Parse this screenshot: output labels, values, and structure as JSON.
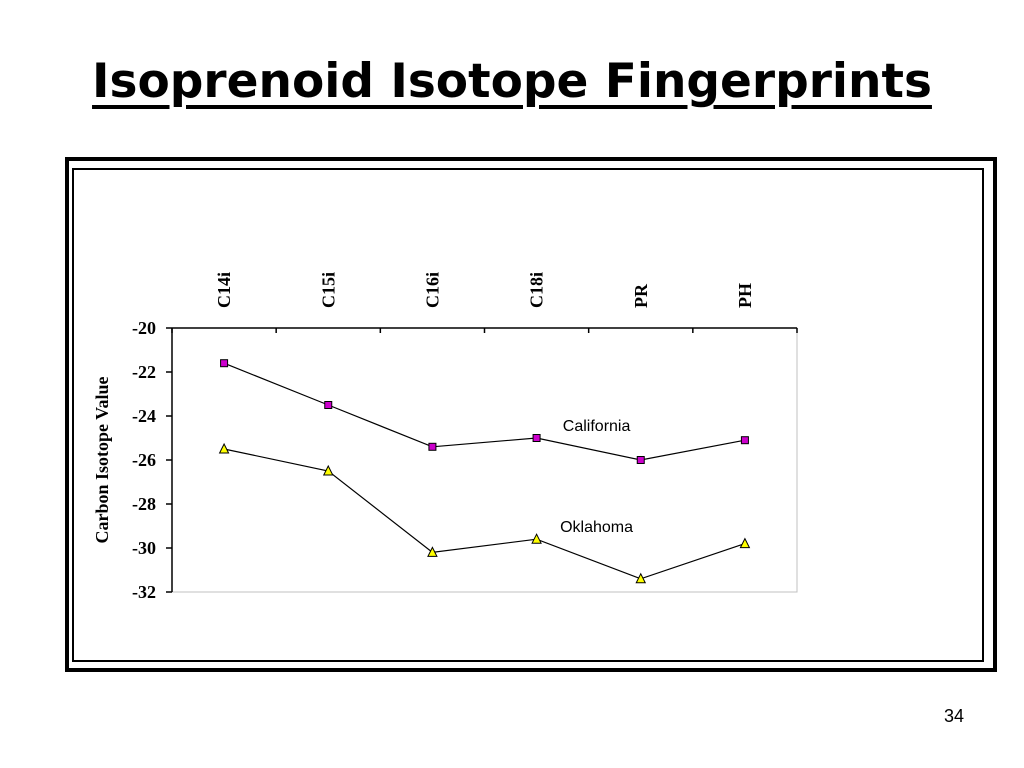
{
  "slide": {
    "title": "Isoprenoid Isotope Fingerprints",
    "page_number": "34"
  },
  "chart_data": {
    "type": "line",
    "categories": [
      "C14i",
      "C15i",
      "C16i",
      "C18i",
      "PR",
      "PH"
    ],
    "ylabel": "Carbon Isotope Value",
    "xlabel": "",
    "ylim": [
      -32,
      -20
    ],
    "ytick_step": 2,
    "x_axis_position": "top",
    "grid": false,
    "legend": "none",
    "series": [
      {
        "name": "California",
        "values": [
          -21.6,
          -23.5,
          -25.4,
          -25.0,
          -26.0,
          -25.1
        ],
        "marker": "square",
        "marker_color": "#cc00cc",
        "line_color": "#000000"
      },
      {
        "name": "Oklahoma",
        "values": [
          -25.5,
          -26.5,
          -30.2,
          -29.6,
          -31.4,
          -29.8
        ],
        "marker": "triangle",
        "marker_color": "#ffff00",
        "line_color": "#000000"
      }
    ],
    "annotations": [
      {
        "text": "California",
        "near_category": "C18i",
        "series": "California"
      },
      {
        "text": "Oklahoma",
        "near_category": "C18i",
        "series": "Oklahoma"
      }
    ]
  }
}
